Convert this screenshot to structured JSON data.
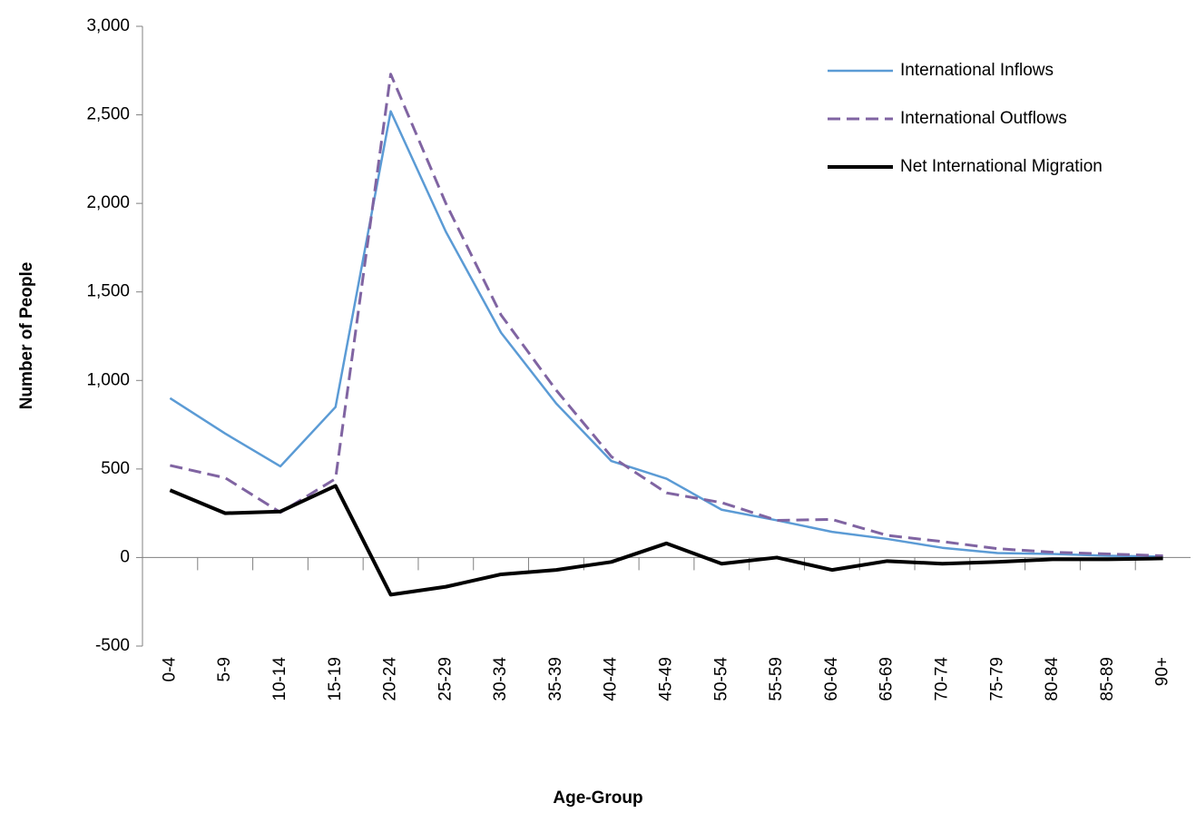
{
  "chart_data": {
    "type": "line",
    "x_label": "Age-Group",
    "y_label": "Number of People",
    "categories": [
      "0-4",
      "5-9",
      "10-14",
      "15-19",
      "20-24",
      "25-29",
      "30-34",
      "35-39",
      "40-44",
      "45-49",
      "50-54",
      "55-59",
      "60-64",
      "65-69",
      "70-74",
      "75-79",
      "80-84",
      "85-89",
      "90+"
    ],
    "series": [
      {
        "name": "International Inflows",
        "color": "#5b9bd5",
        "dashed": false,
        "width": 2.5,
        "values": [
          900,
          700,
          515,
          850,
          2520,
          1840,
          1270,
          870,
          545,
          445,
          270,
          210,
          145,
          105,
          55,
          25,
          20,
          10,
          5
        ]
      },
      {
        "name": "International Outflows",
        "color": "#8064a2",
        "dashed": true,
        "width": 3,
        "values": [
          520,
          450,
          255,
          445,
          2730,
          2000,
          1370,
          945,
          570,
          365,
          310,
          210,
          215,
          125,
          90,
          50,
          30,
          20,
          10
        ]
      },
      {
        "name": "Net International Migration",
        "color": "#000000",
        "dashed": false,
        "width": 4,
        "values": [
          380,
          250,
          260,
          405,
          -210,
          -165,
          -95,
          -70,
          -25,
          80,
          -35,
          0,
          -70,
          -20,
          -35,
          -25,
          -10,
          -10,
          -5
        ]
      }
    ],
    "ylim": [
      -500,
      3000
    ],
    "yticks": [
      -500,
      0,
      500,
      {
        "value": 1000,
        "label": "1,000"
      },
      {
        "value": 1500,
        "label": "1,500"
      },
      {
        "value": 2000,
        "label": "2,000"
      },
      {
        "value": 2500,
        "label": "2,500"
      },
      {
        "value": 3000,
        "label": "3,000"
      }
    ],
    "grid": false,
    "legend": "upper right"
  }
}
